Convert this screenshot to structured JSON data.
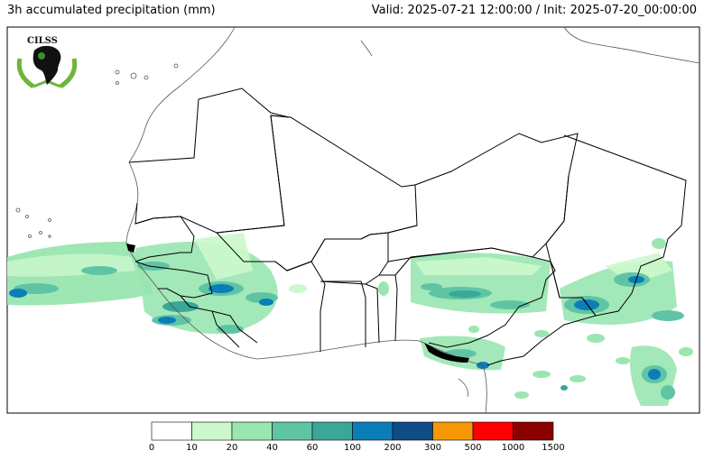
{
  "header": {
    "title": "3h accumulated precipitation (mm)",
    "valid_init": "Valid: 2025-07-21 12:00:00 / Init: 2025-07-20_00:00:00"
  },
  "logo": {
    "text": "CILSS"
  },
  "legend": {
    "ticks": [
      "0",
      "10",
      "20",
      "40",
      "60",
      "100",
      "200",
      "300",
      "500",
      "1000",
      "1500"
    ],
    "colors": [
      "#ffffff",
      "#ccf8cc",
      "#99e6b0",
      "#5fc4a4",
      "#3aa798",
      "#0b7db9",
      "#0d4c86",
      "#f79606",
      "#ff0000",
      "#8b0000"
    ]
  },
  "map": {
    "frame_color": "#000000",
    "coast_color": "#555555",
    "border_color": "#000000"
  }
}
